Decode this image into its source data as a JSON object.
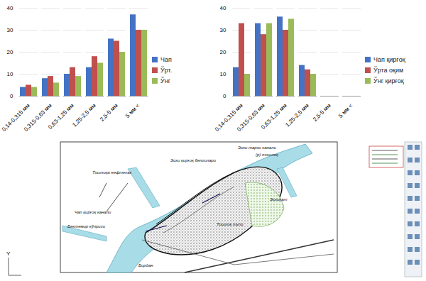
{
  "chart_data": [
    {
      "type": "bar",
      "categories": [
        "0,14-0,315 мм",
        "0,315-0,63 мм",
        "0,63-1,25 мм",
        "1,25-2,5 мм",
        "2,5-5 мм",
        "5 мм <"
      ],
      "series": [
        {
          "name": "Чап",
          "color": "#4472c4",
          "values": [
            4,
            8,
            10,
            13,
            26,
            37
          ]
        },
        {
          "name": "Ўрт.",
          "color": "#c0504d",
          "values": [
            5,
            9,
            13,
            18,
            25,
            30
          ]
        },
        {
          "name": "Ўнг",
          "color": "#9bbb59",
          "values": [
            4,
            6,
            9,
            15,
            20,
            30
          ]
        }
      ],
      "ylim": [
        0,
        40
      ],
      "yticks": [
        0,
        10,
        20,
        30,
        40
      ],
      "grid": true,
      "legend": "right"
    },
    {
      "type": "bar",
      "categories": [
        "0,14-0,315 мм",
        "0,315-0,63 мм",
        "0,63-1,25 мм",
        "1,25-2,5 мм",
        "2,5-5 мм",
        "5 мм <"
      ],
      "series": [
        {
          "name": "Чап қирғоқ",
          "color": "#4472c4",
          "values": [
            13,
            33,
            36,
            14,
            0,
            0
          ]
        },
        {
          "name": "Ўрта оқим",
          "color": "#c0504d",
          "values": [
            33,
            28,
            30,
            12,
            0,
            0
          ]
        },
        {
          "name": "Ўнг қирғоқ",
          "color": "#9bbb59",
          "values": [
            10,
            33,
            35,
            10,
            0,
            0
          ]
        }
      ],
      "ylim": [
        0,
        40
      ],
      "yticks": [
        0,
        10,
        20,
        30,
        40
      ],
      "grid": true,
      "legend": "right"
    }
  ],
  "diagram": {
    "labels": [
      "Тошлоқа нефтегаз",
      "Эски қирғоқ белгилари",
      "Эски тарзи канали",
      "(р) тошлоқ",
      "Чап қирғоқ канали",
      "Бектемир кўприги",
      "Эскиқат",
      "Тошлоқ тупи",
      "Бирдан"
    ],
    "axis_letter": "Y"
  }
}
